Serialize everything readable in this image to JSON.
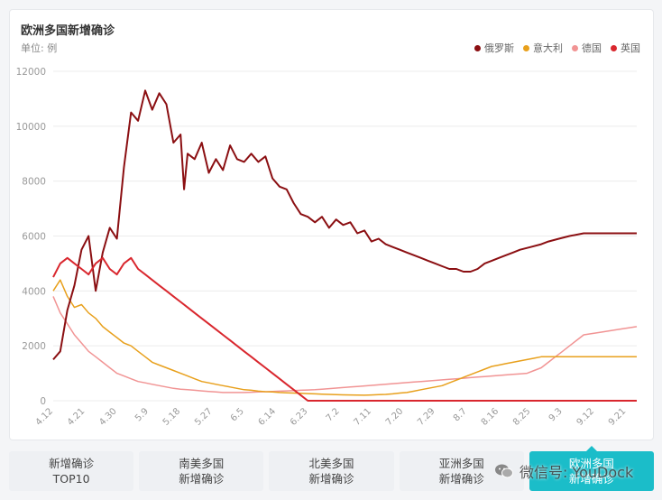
{
  "chart_data": {
    "type": "line",
    "title": "欧洲多国新增确诊",
    "unit_label": "单位: 例",
    "ylim": [
      0,
      12000
    ],
    "y_ticks": [
      0,
      2000,
      4000,
      6000,
      8000,
      10000,
      12000
    ],
    "x_tick_labels": [
      "4.12",
      "4.21",
      "4.30",
      "5.9",
      "5.18",
      "5.27",
      "6.5",
      "6.14",
      "6.23",
      "7.2",
      "7.11",
      "7.20",
      "7.29",
      "8.7",
      "8.16",
      "8.25",
      "9.3",
      "9.12",
      "9.21"
    ],
    "x_tick_spacing_days": 9,
    "x_days": 165,
    "legend_position": "top-right",
    "grid": true,
    "series": [
      {
        "name": "俄罗斯",
        "color": "#8b0f12",
        "width": 2,
        "points": [
          [
            0,
            1500
          ],
          [
            2,
            1800
          ],
          [
            4,
            3300
          ],
          [
            6,
            4200
          ],
          [
            8,
            5500
          ],
          [
            10,
            6000
          ],
          [
            12,
            4000
          ],
          [
            14,
            5400
          ],
          [
            16,
            6300
          ],
          [
            18,
            5900
          ],
          [
            20,
            8500
          ],
          [
            22,
            10500
          ],
          [
            24,
            10200
          ],
          [
            26,
            11300
          ],
          [
            28,
            10600
          ],
          [
            30,
            11200
          ],
          [
            32,
            10800
          ],
          [
            34,
            9400
          ],
          [
            36,
            9700
          ],
          [
            37,
            7700
          ],
          [
            38,
            9000
          ],
          [
            40,
            8800
          ],
          [
            42,
            9400
          ],
          [
            44,
            8300
          ],
          [
            46,
            8800
          ],
          [
            48,
            8400
          ],
          [
            50,
            9300
          ],
          [
            52,
            8800
          ],
          [
            54,
            8700
          ],
          [
            56,
            9000
          ],
          [
            58,
            8700
          ],
          [
            60,
            8900
          ],
          [
            62,
            8100
          ],
          [
            64,
            7800
          ],
          [
            66,
            7700
          ],
          [
            68,
            7200
          ],
          [
            70,
            6800
          ],
          [
            72,
            6700
          ],
          [
            74,
            6500
          ],
          [
            76,
            6700
          ],
          [
            78,
            6300
          ],
          [
            80,
            6600
          ],
          [
            82,
            6400
          ],
          [
            84,
            6500
          ],
          [
            86,
            6100
          ],
          [
            88,
            6200
          ],
          [
            90,
            5800
          ],
          [
            92,
            5900
          ],
          [
            94,
            5700
          ],
          [
            96,
            5600
          ],
          [
            98,
            5500
          ],
          [
            100,
            5400
          ],
          [
            102,
            5300
          ],
          [
            104,
            5200
          ],
          [
            106,
            5100
          ],
          [
            108,
            5000
          ],
          [
            110,
            4900
          ],
          [
            112,
            4800
          ],
          [
            114,
            4800
          ],
          [
            116,
            4700
          ],
          [
            118,
            4700
          ],
          [
            120,
            4800
          ],
          [
            122,
            5000
          ],
          [
            124,
            5100
          ],
          [
            126,
            5200
          ],
          [
            128,
            5300
          ],
          [
            130,
            5400
          ],
          [
            132,
            5500
          ],
          [
            135,
            5600
          ],
          [
            138,
            5700
          ],
          [
            140,
            5800
          ],
          [
            143,
            5900
          ],
          [
            146,
            6000
          ],
          [
            150,
            6100
          ],
          [
            155,
            6100
          ],
          [
            160,
            6100
          ],
          [
            165,
            6100
          ]
        ]
      },
      {
        "name": "意大利",
        "color": "#e8a01c",
        "width": 1.5,
        "points": [
          [
            0,
            4000
          ],
          [
            2,
            4400
          ],
          [
            4,
            3800
          ],
          [
            6,
            3400
          ],
          [
            8,
            3500
          ],
          [
            10,
            3200
          ],
          [
            12,
            3000
          ],
          [
            14,
            2700
          ],
          [
            16,
            2500
          ],
          [
            18,
            2300
          ],
          [
            20,
            2100
          ],
          [
            22,
            2000
          ],
          [
            24,
            1800
          ],
          [
            26,
            1600
          ],
          [
            28,
            1400
          ],
          [
            30,
            1300
          ],
          [
            32,
            1200
          ],
          [
            34,
            1100
          ],
          [
            36,
            1000
          ],
          [
            38,
            900
          ],
          [
            40,
            800
          ],
          [
            42,
            700
          ],
          [
            44,
            650
          ],
          [
            46,
            600
          ],
          [
            48,
            550
          ],
          [
            50,
            500
          ],
          [
            52,
            450
          ],
          [
            54,
            400
          ],
          [
            56,
            380
          ],
          [
            58,
            350
          ],
          [
            60,
            330
          ],
          [
            62,
            320
          ],
          [
            64,
            300
          ],
          [
            66,
            290
          ],
          [
            68,
            280
          ],
          [
            70,
            270
          ],
          [
            72,
            260
          ],
          [
            74,
            250
          ],
          [
            76,
            240
          ],
          [
            78,
            230
          ],
          [
            80,
            220
          ],
          [
            82,
            215
          ],
          [
            84,
            210
          ],
          [
            86,
            205
          ],
          [
            88,
            200
          ],
          [
            90,
            210
          ],
          [
            92,
            220
          ],
          [
            94,
            230
          ],
          [
            96,
            250
          ],
          [
            98,
            280
          ],
          [
            100,
            300
          ],
          [
            102,
            350
          ],
          [
            104,
            400
          ],
          [
            106,
            450
          ],
          [
            108,
            500
          ],
          [
            110,
            550
          ],
          [
            112,
            650
          ],
          [
            114,
            750
          ],
          [
            116,
            850
          ],
          [
            118,
            950
          ],
          [
            120,
            1050
          ],
          [
            122,
            1150
          ],
          [
            124,
            1250
          ],
          [
            126,
            1300
          ],
          [
            128,
            1350
          ],
          [
            130,
            1400
          ],
          [
            132,
            1450
          ],
          [
            134,
            1500
          ],
          [
            136,
            1550
          ],
          [
            138,
            1600
          ],
          [
            140,
            1600
          ],
          [
            142,
            1600
          ],
          [
            144,
            1600
          ],
          [
            146,
            1600
          ],
          [
            148,
            1600
          ],
          [
            150,
            1600
          ],
          [
            155,
            1600
          ],
          [
            160,
            1600
          ],
          [
            165,
            1600
          ]
        ]
      },
      {
        "name": "德国",
        "color": "#f19494",
        "width": 1.5,
        "points": [
          [
            0,
            3800
          ],
          [
            2,
            3200
          ],
          [
            4,
            2800
          ],
          [
            6,
            2400
          ],
          [
            8,
            2100
          ],
          [
            10,
            1800
          ],
          [
            12,
            1600
          ],
          [
            14,
            1400
          ],
          [
            16,
            1200
          ],
          [
            18,
            1000
          ],
          [
            20,
            900
          ],
          [
            22,
            800
          ],
          [
            24,
            700
          ],
          [
            26,
            650
          ],
          [
            28,
            600
          ],
          [
            30,
            550
          ],
          [
            32,
            500
          ],
          [
            34,
            450
          ],
          [
            36,
            420
          ],
          [
            38,
            400
          ],
          [
            40,
            380
          ],
          [
            42,
            360
          ],
          [
            44,
            340
          ],
          [
            46,
            320
          ],
          [
            48,
            300
          ],
          [
            50,
            300
          ],
          [
            52,
            300
          ],
          [
            54,
            300
          ],
          [
            56,
            310
          ],
          [
            58,
            320
          ],
          [
            60,
            330
          ],
          [
            62,
            340
          ],
          [
            64,
            350
          ],
          [
            66,
            360
          ],
          [
            68,
            370
          ],
          [
            70,
            380
          ],
          [
            72,
            390
          ],
          [
            74,
            400
          ],
          [
            76,
            420
          ],
          [
            78,
            440
          ],
          [
            80,
            460
          ],
          [
            82,
            480
          ],
          [
            84,
            500
          ],
          [
            86,
            520
          ],
          [
            88,
            540
          ],
          [
            90,
            560
          ],
          [
            92,
            580
          ],
          [
            94,
            600
          ],
          [
            96,
            620
          ],
          [
            98,
            640
          ],
          [
            100,
            660
          ],
          [
            102,
            680
          ],
          [
            104,
            700
          ],
          [
            106,
            720
          ],
          [
            108,
            740
          ],
          [
            110,
            760
          ],
          [
            112,
            780
          ],
          [
            114,
            800
          ],
          [
            116,
            820
          ],
          [
            118,
            840
          ],
          [
            120,
            860
          ],
          [
            122,
            880
          ],
          [
            124,
            900
          ],
          [
            126,
            920
          ],
          [
            128,
            940
          ],
          [
            130,
            960
          ],
          [
            132,
            980
          ],
          [
            134,
            1000
          ],
          [
            136,
            1100
          ],
          [
            138,
            1200
          ],
          [
            140,
            1400
          ],
          [
            142,
            1600
          ],
          [
            144,
            1800
          ],
          [
            146,
            2000
          ],
          [
            148,
            2200
          ],
          [
            150,
            2400
          ],
          [
            155,
            2500
          ],
          [
            160,
            2600
          ],
          [
            165,
            2700
          ]
        ]
      },
      {
        "name": "英国",
        "color": "#d9272e",
        "width": 2,
        "points": [
          [
            0,
            4500
          ],
          [
            2,
            5000
          ],
          [
            4,
            5200
          ],
          [
            6,
            5000
          ],
          [
            8,
            4800
          ],
          [
            10,
            4600
          ],
          [
            12,
            5000
          ],
          [
            14,
            5200
          ],
          [
            16,
            4800
          ],
          [
            18,
            4600
          ],
          [
            20,
            5000
          ],
          [
            22,
            5200
          ],
          [
            24,
            4800
          ],
          [
            26,
            4600
          ],
          [
            28,
            4400
          ],
          [
            30,
            4200
          ],
          [
            32,
            4000
          ],
          [
            34,
            3800
          ],
          [
            36,
            3600
          ],
          [
            38,
            3400
          ],
          [
            40,
            3200
          ],
          [
            42,
            3000
          ],
          [
            44,
            2800
          ],
          [
            46,
            2600
          ],
          [
            48,
            2400
          ],
          [
            50,
            2200
          ],
          [
            52,
            2000
          ],
          [
            54,
            1800
          ],
          [
            56,
            1600
          ],
          [
            58,
            1400
          ],
          [
            60,
            1200
          ],
          [
            62,
            1000
          ],
          [
            64,
            800
          ],
          [
            66,
            600
          ],
          [
            68,
            400
          ],
          [
            70,
            200
          ],
          [
            72,
            0
          ],
          [
            74,
            0
          ],
          [
            76,
            0
          ],
          [
            78,
            0
          ],
          [
            80,
            0
          ],
          [
            82,
            0
          ],
          [
            84,
            0
          ],
          [
            86,
            0
          ],
          [
            88,
            0
          ],
          [
            90,
            0
          ],
          [
            92,
            0
          ],
          [
            94,
            0
          ],
          [
            96,
            0
          ],
          [
            98,
            0
          ],
          [
            100,
            0
          ],
          [
            102,
            0
          ],
          [
            104,
            0
          ],
          [
            106,
            0
          ],
          [
            108,
            0
          ],
          [
            110,
            0
          ],
          [
            112,
            0
          ],
          [
            114,
            0
          ],
          [
            116,
            0
          ],
          [
            118,
            0
          ],
          [
            120,
            0
          ],
          [
            122,
            0
          ],
          [
            124,
            0
          ],
          [
            126,
            0
          ],
          [
            128,
            0
          ],
          [
            130,
            0
          ],
          [
            132,
            0
          ],
          [
            134,
            0
          ],
          [
            136,
            0
          ],
          [
            138,
            0
          ],
          [
            140,
            0
          ],
          [
            142,
            0
          ],
          [
            144,
            0
          ],
          [
            146,
            0
          ],
          [
            148,
            0
          ],
          [
            150,
            0
          ],
          [
            155,
            0
          ],
          [
            160,
            0
          ],
          [
            165,
            0
          ]
        ]
      }
    ]
  },
  "tabs": [
    {
      "line1": "新增确诊",
      "line2": "TOP10",
      "active": false
    },
    {
      "line1": "南美多国",
      "line2": "新增确诊",
      "active": false
    },
    {
      "line1": "北美多国",
      "line2": "新增确诊",
      "active": false
    },
    {
      "line1": "亚洲多国",
      "line2": "新增确诊",
      "active": false
    },
    {
      "line1": "欧洲多国",
      "line2": "新增确诊",
      "active": true
    }
  ],
  "watermark": {
    "text": "微信号: YouDock",
    "icon": "wechat-icon"
  },
  "colors": {
    "accent": "#1bbdc9",
    "grid": "#ececec",
    "axis_text": "#999999"
  }
}
